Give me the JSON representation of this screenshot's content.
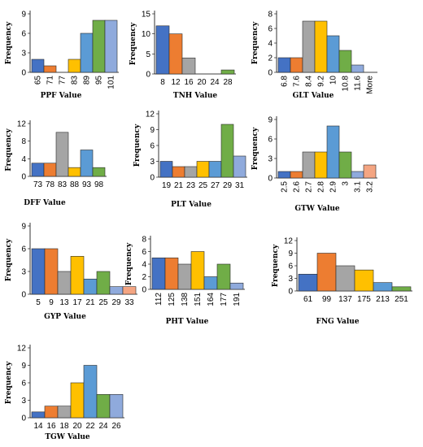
{
  "palette": [
    "#4472c4",
    "#ed7d31",
    "#a5a5a5",
    "#ffc000",
    "#5b9bd5",
    "#70ad47",
    "#8faadc",
    "#f4a582"
  ],
  "chart_data": [
    {
      "type": "bar",
      "ylabel": "Frequency",
      "xlabel": "PPF Value",
      "ylim": [
        0,
        9
      ],
      "yticks": [
        "0",
        "3",
        "6",
        "9"
      ],
      "categories": [
        "65",
        "71",
        "77",
        "83",
        "89",
        "95",
        "101"
      ],
      "values": [
        2,
        1,
        0,
        2,
        6,
        8,
        8
      ],
      "rotated_x": true
    },
    {
      "type": "bar",
      "ylabel": "Frequency",
      "xlabel": "TNH Value",
      "ylim": [
        0,
        15
      ],
      "yticks": [
        "0",
        "5",
        "10",
        "15"
      ],
      "categories": [
        "8",
        "12",
        "16",
        "20",
        "24",
        "28"
      ],
      "values": [
        12,
        10,
        4,
        0,
        0,
        1
      ],
      "rotated_x": false
    },
    {
      "type": "bar",
      "ylabel": "Frequency",
      "xlabel": "GLT Value",
      "ylim": [
        0,
        8
      ],
      "yticks": [
        "0",
        "2",
        "4",
        "6",
        "8"
      ],
      "categories": [
        "6.8",
        "7.6",
        "8.4",
        "9.2",
        "10",
        "10.8",
        "11.6",
        "More"
      ],
      "values": [
        2,
        2,
        7,
        7,
        5,
        3,
        1,
        0
      ],
      "rotated_x": true
    },
    {
      "type": "bar",
      "ylabel": "Frequency",
      "xlabel": "DFF Value",
      "ylim": [
        0,
        12
      ],
      "yticks": [
        "0",
        "4",
        "8",
        "12"
      ],
      "categories": [
        "73",
        "78",
        "83",
        "88",
        "93",
        "98"
      ],
      "values": [
        3,
        3,
        10,
        2,
        6,
        2
      ],
      "rotated_x": false
    },
    {
      "type": "bar",
      "ylabel": "Frequency",
      "xlabel": "PLT Value",
      "ylim": [
        0,
        12
      ],
      "yticks": [
        "0",
        "3",
        "6",
        "9",
        "12"
      ],
      "categories": [
        "19",
        "21",
        "23",
        "25",
        "27",
        "29",
        "31"
      ],
      "values": [
        3,
        2,
        2,
        3,
        3,
        10,
        4
      ],
      "rotated_x": false
    },
    {
      "type": "bar",
      "ylabel": "Frequency",
      "xlabel": "GTW Value",
      "ylim": [
        0,
        9
      ],
      "yticks": [
        "0",
        "3",
        "6",
        "9"
      ],
      "categories": [
        "2.5",
        "2.6",
        "2.7",
        "2.8",
        "2.9",
        "3",
        "3.1",
        "3.2"
      ],
      "values": [
        1,
        1,
        4,
        4,
        8,
        4,
        1,
        2
      ],
      "rotated_x": true
    },
    {
      "type": "bar",
      "ylabel": "Frequency",
      "xlabel": "GYP Value",
      "ylim": [
        0,
        9
      ],
      "yticks": [
        "0",
        "3",
        "6",
        "9"
      ],
      "categories": [
        "5",
        "9",
        "13",
        "17",
        "21",
        "25",
        "29",
        "33"
      ],
      "values": [
        6,
        6,
        3,
        5,
        2,
        3,
        1,
        1
      ],
      "rotated_x": false
    },
    {
      "type": "bar",
      "ylabel": "Frequency",
      "xlabel": "PHT Value",
      "ylim": [
        0,
        8
      ],
      "yticks": [
        "0",
        "2",
        "4",
        "6",
        "8"
      ],
      "categories": [
        "112",
        "125",
        "138",
        "151",
        "164",
        "177",
        "191"
      ],
      "values": [
        5,
        5,
        4,
        6,
        2,
        4,
        1
      ],
      "rotated_x": true
    },
    {
      "type": "bar",
      "ylabel": "Frequency",
      "xlabel": "FNG Value",
      "ylim": [
        0,
        12
      ],
      "yticks": [
        "0",
        "3",
        "6",
        "9",
        "12"
      ],
      "categories": [
        "61",
        "99",
        "137",
        "175",
        "213",
        "251"
      ],
      "values": [
        4,
        9,
        6,
        5,
        2,
        1
      ],
      "rotated_x": false
    },
    {
      "type": "bar",
      "ylabel": "Frequency",
      "xlabel": "TGW Value",
      "ylim": [
        0,
        12
      ],
      "yticks": [
        "0",
        "3",
        "6",
        "9",
        "12"
      ],
      "categories": [
        "14",
        "16",
        "18",
        "20",
        "22",
        "24",
        "26"
      ],
      "values": [
        1,
        2,
        2,
        6,
        9,
        4,
        4
      ],
      "rotated_x": false
    }
  ]
}
